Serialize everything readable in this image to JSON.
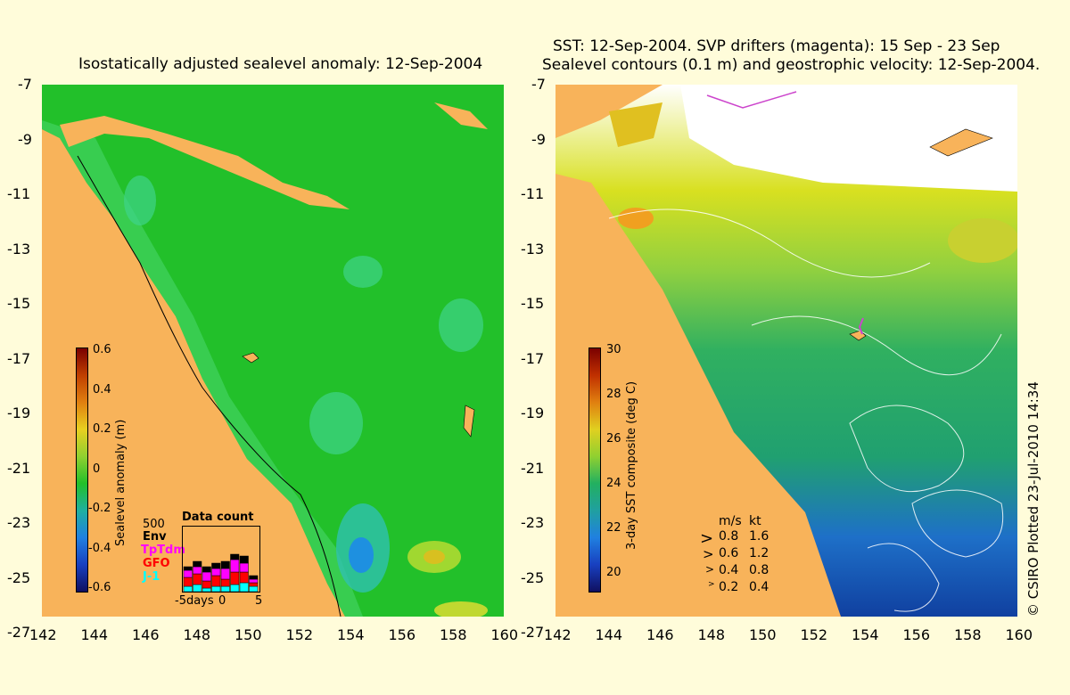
{
  "left_title": "Isostatically adjusted sealevel anomaly: 12-Sep-2004",
  "right_title_1": "SST: 12-Sep-2004. SVP drifters (magenta): 15 Sep - 23 Sep",
  "right_title_2": "Sealevel contours (0.1 m) and geostrophic velocity: 12-Sep-2004.",
  "lat_labels": [
    "-7",
    "-9",
    "-11",
    "-13",
    "-15",
    "-17",
    "-19",
    "-21",
    "-23",
    "-25",
    "-27"
  ],
  "lon_labels": [
    "142",
    "144",
    "146",
    "148",
    "150",
    "152",
    "154",
    "156",
    "158",
    "160"
  ],
  "left_colorbar": {
    "title": "Sealevel anomaly (m)",
    "labels": [
      "0.6",
      "0.4",
      "0.2",
      "0",
      "-0.2",
      "-0.4",
      "-0.6"
    ]
  },
  "right_colorbar": {
    "title": "3-day SST composite (deg C)",
    "labels": [
      "30",
      "28",
      "26",
      "24",
      "22",
      "20"
    ]
  },
  "inset": {
    "title": "Data count",
    "max": "500",
    "series": [
      {
        "name": "Env",
        "color": "#000000"
      },
      {
        "name": "TpTdm",
        "color": "#ff00ff"
      },
      {
        "name": "GFO",
        "color": "#ff0000"
      },
      {
        "name": "J-1",
        "color": "#00ffff"
      }
    ],
    "x_labels": [
      "-5days",
      "0",
      "5"
    ]
  },
  "velocity_legend": {
    "headers": [
      "m/s",
      "kt"
    ],
    "rows": [
      [
        "0.8",
        "1.6"
      ],
      [
        "0.6",
        "1.2"
      ],
      [
        "0.4",
        "0.8"
      ],
      [
        "0.2",
        "0.4"
      ]
    ]
  },
  "credit": "© CSIRO Plotted 23-Jul-2010 14:34",
  "colors": {
    "background": "#fffcda",
    "land": "#f8b35a",
    "ocean_sla": "#22c02a",
    "drifter": "#cc44cc"
  }
}
